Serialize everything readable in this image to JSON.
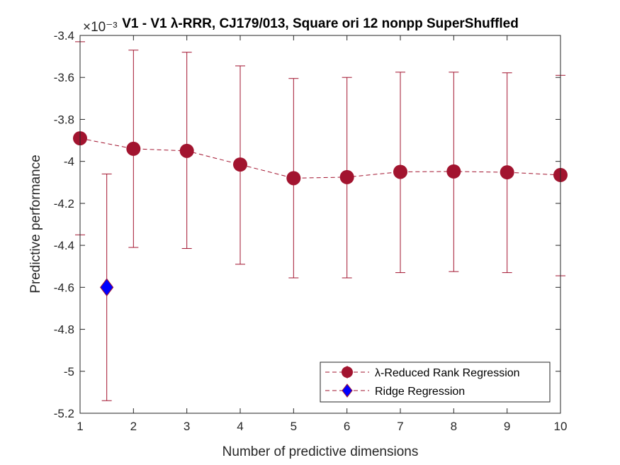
{
  "chart_data": {
    "type": "scatter",
    "title": "V1 - V1 λ-RRR, CJ179/013, Square ori 12 nonpp SuperShuffled",
    "xlabel": "Number of predictive dimensions",
    "ylabel": "Predictive performance",
    "y_exponent_label": "×10⁻³",
    "xlim": [
      1,
      10
    ],
    "ylim": [
      -5.2,
      -3.4
    ],
    "x_ticks": [
      1,
      2,
      3,
      4,
      5,
      6,
      7,
      8,
      9,
      10
    ],
    "y_ticks": [
      -5.2,
      -5,
      -4.8,
      -4.6,
      -4.4,
      -4.2,
      -4,
      -3.8,
      -3.6,
      -3.4
    ],
    "x_tick_labels": [
      "1",
      "2",
      "3",
      "4",
      "5",
      "6",
      "7",
      "8",
      "9",
      "10"
    ],
    "y_tick_labels": [
      "-5.2",
      "-5",
      "-4.8",
      "-4.6",
      "-4.4",
      "-4.2",
      "-4",
      "-3.8",
      "-3.6",
      "-3.4"
    ],
    "grid": false,
    "legend_position": "bottom-right",
    "series": [
      {
        "name": "λ-Reduced Rank Regression",
        "color": "#a2142f",
        "marker": "circle",
        "line_style": "dashed",
        "x": [
          1,
          2,
          3,
          4,
          5,
          6,
          7,
          8,
          9,
          10
        ],
        "y": [
          -3.89,
          -3.94,
          -3.95,
          -4.015,
          -4.08,
          -4.075,
          -4.05,
          -4.048,
          -4.052,
          -4.065
        ],
        "err_low": [
          -4.35,
          -4.41,
          -4.415,
          -4.49,
          -4.555,
          -4.555,
          -4.53,
          -4.525,
          -4.53,
          -4.545
        ],
        "err_high": [
          -3.43,
          -3.47,
          -3.48,
          -3.545,
          -3.605,
          -3.6,
          -3.575,
          -3.575,
          -3.578,
          -3.59
        ]
      },
      {
        "name": "Ridge Regression",
        "color": "#0000ff",
        "edge_color": "#a2142f",
        "marker": "diamond",
        "line_style": "dashed",
        "x": [
          1.5
        ],
        "y": [
          -4.6
        ],
        "err_low": [
          -5.14
        ],
        "err_high": [
          -4.06
        ]
      }
    ]
  }
}
